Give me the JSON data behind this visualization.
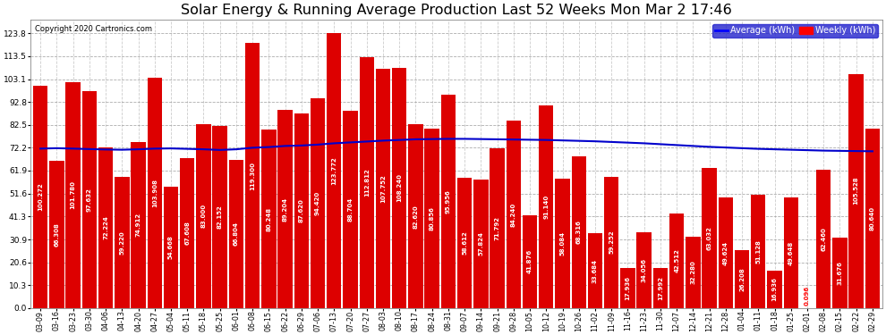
{
  "title": "Solar Energy & Running Average Production Last 52 Weeks Mon Mar 2 17:46",
  "copyright": "Copyright 2020 Cartronics.com",
  "legend_avg": "Average (kWh)",
  "legend_weekly": "Weekly (kWh)",
  "categories": [
    "03-09",
    "03-16",
    "03-23",
    "03-30",
    "04-06",
    "04-13",
    "04-20",
    "04-27",
    "05-04",
    "05-11",
    "05-18",
    "05-25",
    "06-01",
    "06-08",
    "06-15",
    "06-22",
    "06-29",
    "07-06",
    "07-13",
    "07-20",
    "07-27",
    "08-03",
    "08-10",
    "08-17",
    "08-24",
    "08-31",
    "09-07",
    "09-14",
    "09-21",
    "09-28",
    "10-05",
    "10-12",
    "10-19",
    "10-26",
    "11-02",
    "11-09",
    "11-16",
    "11-23",
    "11-30",
    "12-07",
    "12-14",
    "12-21",
    "12-28",
    "01-04",
    "01-11",
    "01-18",
    "01-25",
    "02-01",
    "02-08",
    "02-15",
    "02-22",
    "02-29"
  ],
  "weekly_values": [
    100.272,
    66.308,
    101.78,
    97.632,
    72.224,
    59.22,
    74.912,
    103.908,
    54.668,
    67.608,
    83.0,
    82.152,
    66.804,
    119.3,
    80.248,
    89.204,
    87.62,
    94.42,
    123.772,
    88.704,
    112.812,
    107.752,
    108.24,
    82.62,
    80.856,
    95.956,
    58.612,
    57.824,
    71.792,
    84.24,
    41.876,
    91.14,
    58.084,
    68.316,
    33.684,
    59.252,
    17.936,
    34.056,
    17.992,
    42.512,
    32.28,
    63.032,
    49.624,
    26.208,
    51.128,
    16.936,
    49.648,
    0.096,
    62.46,
    31.676,
    105.528,
    80.64
  ],
  "avg_values": [
    71.8,
    72.0,
    71.8,
    71.6,
    71.4,
    71.3,
    71.5,
    71.8,
    71.9,
    71.7,
    71.5,
    71.2,
    71.5,
    72.2,
    72.5,
    73.0,
    73.2,
    73.6,
    74.2,
    74.6,
    75.0,
    75.4,
    75.7,
    76.0,
    76.1,
    76.2,
    76.2,
    76.1,
    76.0,
    75.9,
    75.8,
    75.7,
    75.5,
    75.3,
    75.1,
    74.8,
    74.5,
    74.2,
    73.8,
    73.4,
    73.0,
    72.6,
    72.3,
    72.0,
    71.7,
    71.5,
    71.3,
    71.1,
    70.9,
    70.8,
    70.7,
    70.6
  ],
  "bar_color": "#dd0000",
  "line_color": "#0000cc",
  "bg_color": "#ffffff",
  "grid_color": "#999999",
  "yticks": [
    0.0,
    10.3,
    20.6,
    30.9,
    41.3,
    51.6,
    61.9,
    72.2,
    82.5,
    92.8,
    103.1,
    113.5,
    123.8
  ],
  "ylim": [
    0,
    130
  ],
  "title_fontsize": 11.5,
  "tick_fontsize": 6.5,
  "bar_label_fontsize": 5.0
}
